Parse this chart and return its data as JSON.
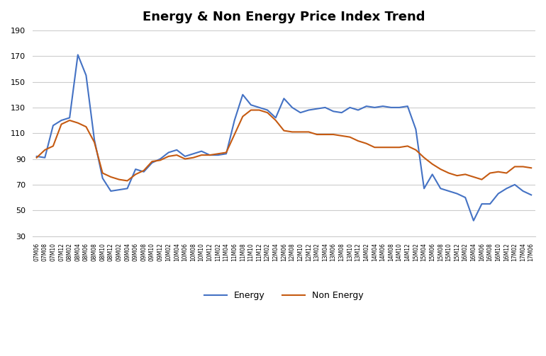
{
  "title": "Energy & Non Energy Price Index Trend",
  "energy_color": "#4472C4",
  "non_energy_color": "#C55A11",
  "background_color": "#FFFFFF",
  "grid_color": "#CCCCCC",
  "ylim": [
    30,
    190
  ],
  "yticks": [
    30,
    50,
    70,
    90,
    110,
    130,
    150,
    170,
    190
  ],
  "legend_labels": [
    "Energy",
    "Non Energy"
  ],
  "xlabel_rotation": 90,
  "labels": [
    "07M06",
    "07M08",
    "07M10",
    "07M12",
    "08M02",
    "08M04",
    "08M06",
    "08M08",
    "08M10",
    "08M12",
    "09M02",
    "09M04",
    "09M06",
    "09M08",
    "09M10",
    "09M12",
    "10M02",
    "10M04",
    "10M06",
    "10M08",
    "10M10",
    "10M12",
    "11M02",
    "11M04",
    "11M06",
    "11M08",
    "11M10",
    "11M12",
    "12M02",
    "12M04",
    "12M06",
    "12M08",
    "12M10",
    "12M12",
    "13M02",
    "13M04",
    "13M06",
    "13M08",
    "13M10",
    "13M12",
    "14M02",
    "14M04",
    "14M06",
    "14M08",
    "14M10",
    "14M12",
    "15M02",
    "15M04",
    "15M06",
    "15M08",
    "15M10",
    "15M12",
    "16M02",
    "16M04",
    "16M06",
    "16M08",
    "16M10",
    "16M12",
    "17M02",
    "17M04",
    "17M06"
  ],
  "energy": [
    92,
    91,
    116,
    120,
    122,
    171,
    155,
    105,
    75,
    65,
    66,
    67,
    82,
    80,
    87,
    90,
    95,
    97,
    92,
    94,
    96,
    93,
    93,
    94,
    120,
    140,
    132,
    130,
    128,
    122,
    137,
    130,
    126,
    128,
    129,
    130,
    127,
    126,
    130,
    128,
    131,
    130,
    131,
    130,
    130,
    131,
    113,
    67,
    78,
    67,
    65,
    63,
    60,
    42,
    55,
    55,
    63,
    67,
    70,
    65,
    62
  ],
  "non_energy": [
    91,
    97,
    100,
    117,
    120,
    118,
    115,
    103,
    79,
    76,
    74,
    73,
    78,
    81,
    88,
    89,
    92,
    93,
    90,
    91,
    93,
    93,
    94,
    95,
    109,
    123,
    128,
    128,
    126,
    120,
    112,
    111,
    111,
    111,
    109,
    109,
    109,
    108,
    107,
    104,
    102,
    99,
    99,
    99,
    99,
    100,
    97,
    91,
    86,
    82,
    79,
    77,
    78,
    76,
    74,
    79,
    80,
    79,
    84,
    84,
    83
  ]
}
